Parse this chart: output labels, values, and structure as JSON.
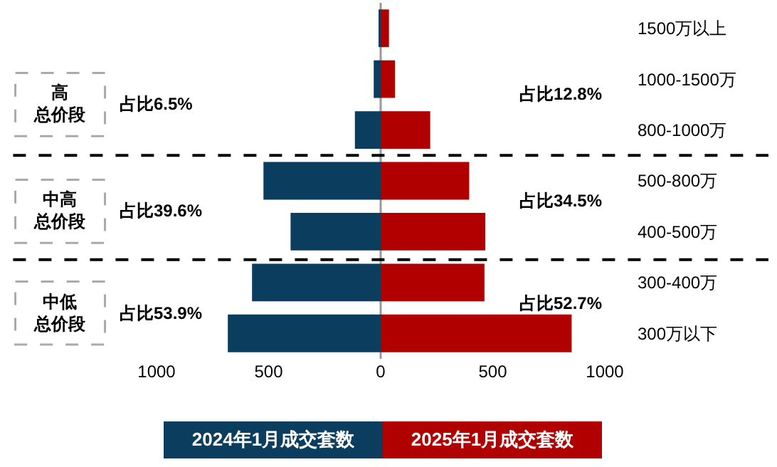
{
  "chart_data": {
    "type": "bar",
    "orientation": "horizontal",
    "categories": [
      "1500万以上",
      "1000-1500万",
      "800-1000万",
      "500-800万",
      "400-500万",
      "300-400万",
      "300万以下"
    ],
    "series": [
      {
        "name": "2024年1月成交套数",
        "color": "#0b3d5e",
        "values": [
          -6,
          -31,
          -115,
          -523,
          -402,
          -574,
          -682
        ]
      },
      {
        "name": "2025年1月成交套数",
        "color": "#b00000",
        "values": [
          37,
          64,
          221,
          395,
          467,
          463,
          852
        ]
      }
    ],
    "xlim": [
      -1000,
      1000
    ],
    "xticks": [
      {
        "value": -1000,
        "label": "1000"
      },
      {
        "value": -500,
        "label": "500"
      },
      0,
      500,
      1000
    ],
    "legend": "bottom",
    "stacked": true,
    "annotations": [
      "高总价段",
      "占比6.5%",
      "占比12.8%",
      "中高总价段",
      "占比39.6%",
      "占比34.5%",
      "中低总价段",
      "占比53.9%",
      "占比52.7%"
    ]
  }
}
